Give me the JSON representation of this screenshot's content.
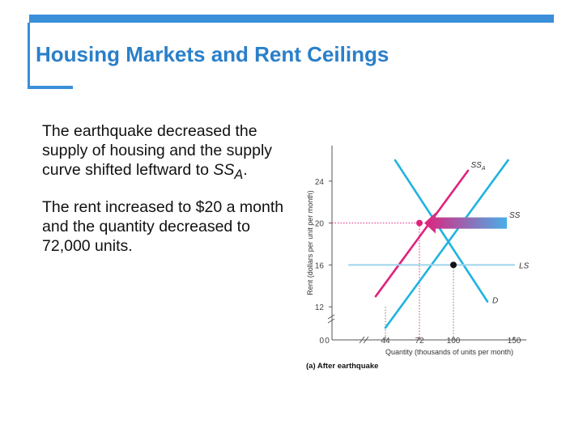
{
  "slide": {
    "title": "Housing Markets and Rent Ceilings",
    "para1_main": "The earthquake decreased the supply of housing and the supply curve shifted leftward to ",
    "para1_ss": "SS",
    "para1_sub": "A",
    "para1_end": ".",
    "para2": "The rent increased to $20 a month and the quantity decreased to 72,000 units."
  },
  "colors": {
    "accent": "#3a8fd8",
    "supply": "#1fb3df",
    "shifted_supply": "#e0227c",
    "guide": "#9ed4ea"
  },
  "chart_data": {
    "type": "line",
    "xlabel": "Quantity (thousands of units per month)",
    "ylabel": "Rent (dollars per unit per month)",
    "xlim": [
      0,
      160
    ],
    "ylim": [
      10,
      27
    ],
    "x_ticks": [
      "0",
      "44",
      "72",
      "100",
      "150"
    ],
    "y_ticks": [
      "0",
      "12",
      "16",
      "20",
      "24"
    ],
    "axis_breaks": true,
    "series": [
      {
        "name": "SS",
        "points": [
          [
            44,
            10
          ],
          [
            145,
            26
          ]
        ]
      },
      {
        "name": "SSA",
        "points": [
          [
            36,
            13
          ],
          [
            112,
            25
          ]
        ]
      },
      {
        "name": "D",
        "points": [
          [
            52,
            26
          ],
          [
            128,
            12.5
          ]
        ]
      },
      {
        "name": "LS",
        "points": [
          [
            14,
            16
          ],
          [
            150,
            16
          ]
        ]
      }
    ],
    "highlighted": [
      {
        "x": 72,
        "y": 20
      },
      {
        "x": 100,
        "y": 16
      }
    ],
    "curve_labels": [
      {
        "name": "SS",
        "sub": "A"
      },
      {
        "name": "SS",
        "sub": ""
      },
      {
        "name": "LS",
        "sub": ""
      },
      {
        "name": "D",
        "sub": ""
      }
    ],
    "shift_arrow": {
      "from": [
        144,
        20
      ],
      "to": [
        76,
        20
      ]
    },
    "caption": "(a) After earthquake"
  }
}
